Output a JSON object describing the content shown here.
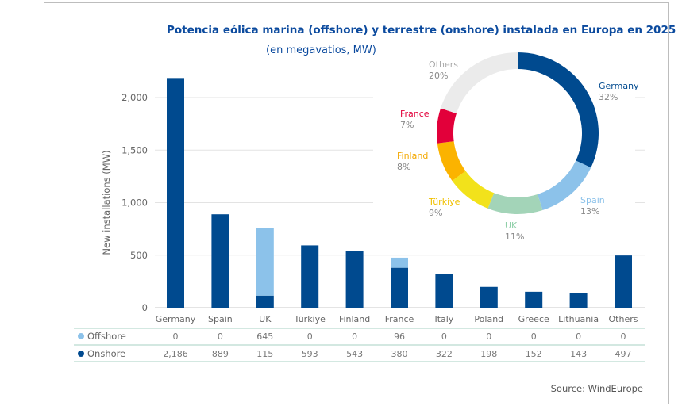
{
  "chart_data": {
    "type": "bar",
    "title": "Potencia eólica marina (offshore) y terrestre (onshore) instalada en Europa en 2025",
    "subtitle": "(en megavatios, MW)",
    "ylabel": "New installations (MW)",
    "ylim": [
      0,
      2000
    ],
    "yticks": [
      "0",
      "500",
      "1,000",
      "1,500",
      "2,000"
    ],
    "ytick_values": [
      0,
      500,
      1000,
      1500,
      2000
    ],
    "stacked": true,
    "categories": [
      "Germany",
      "Spain",
      "UK",
      "Türkiye",
      "Finland",
      "France",
      "Italy",
      "Poland",
      "Greece",
      "Lithuania",
      "Others"
    ],
    "series": [
      {
        "name": "Onshore",
        "color": "#004a8f",
        "values": [
          2186,
          889,
          115,
          593,
          543,
          380,
          322,
          198,
          152,
          143,
          497
        ],
        "labels": [
          "2,186",
          "889",
          "115",
          "593",
          "543",
          "380",
          "322",
          "198",
          "152",
          "143",
          "497"
        ]
      },
      {
        "name": "Offshore",
        "color": "#8cc2ea",
        "values": [
          0,
          0,
          645,
          0,
          0,
          96,
          0,
          0,
          0,
          0,
          0
        ],
        "labels": [
          "0",
          "0",
          "645",
          "0",
          "0",
          "96",
          "0",
          "0",
          "0",
          "0",
          "0"
        ]
      }
    ],
    "donut": {
      "type": "pie",
      "slices": [
        {
          "label": "Germany",
          "pct": 32,
          "pct_label": "32%",
          "color": "#004a8f"
        },
        {
          "label": "Spain",
          "pct": 13,
          "pct_label": "13%",
          "color": "#8cc2ea"
        },
        {
          "label": "UK",
          "pct": 11,
          "pct_label": "11%",
          "color": "#a3d4b8"
        },
        {
          "label": "Türkiye",
          "pct": 9,
          "pct_label": "9%",
          "color": "#f2e21b"
        },
        {
          "label": "Finland",
          "pct": 8,
          "pct_label": "8%",
          "color": "#fbb300"
        },
        {
          "label": "France",
          "pct": 7,
          "pct_label": "7%",
          "color": "#e2003a"
        },
        {
          "label": "Others",
          "pct": 20,
          "pct_label": "20%",
          "color": "#ebebeb"
        }
      ]
    },
    "source": "Source: WindEurope"
  }
}
